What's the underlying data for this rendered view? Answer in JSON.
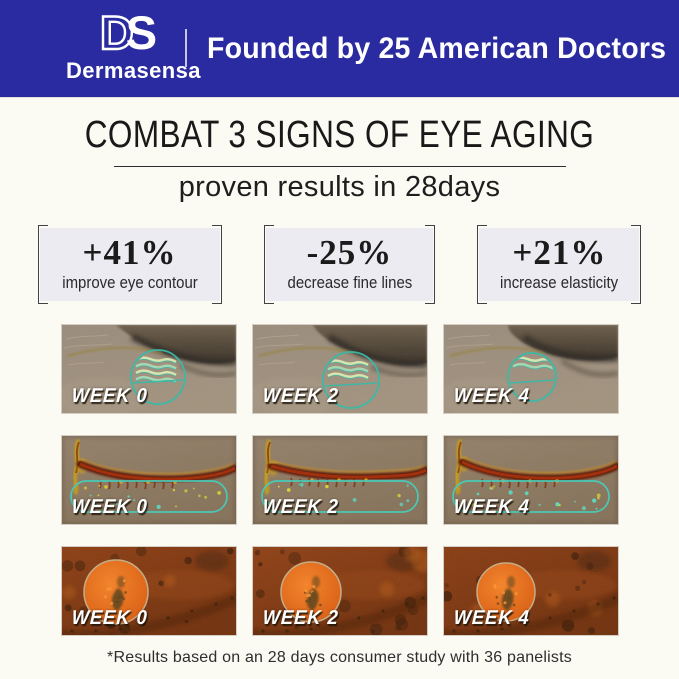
{
  "brand": {
    "logo_d": "D",
    "logo_s": "S",
    "logo_name": "Dermasensa",
    "tagline": "Founded by 25 American Doctors"
  },
  "headline": {
    "title": "COMBAT 3 SIGNS OF EYE AGING",
    "subtitle": "proven results in 28days"
  },
  "stats": [
    {
      "value": "+41%",
      "label": "improve eye contour"
    },
    {
      "value": "-25%",
      "label": "decrease fine lines"
    },
    {
      "value": "+21%",
      "label": "increase elasticity"
    }
  ],
  "results": {
    "rows": [
      {
        "metric": "eye-contour",
        "weeks": [
          "WEEK 0",
          "WEEK 2",
          "WEEK 4"
        ]
      },
      {
        "metric": "fine-lines",
        "weeks": [
          "WEEK 0",
          "WEEK 2",
          "WEEK 4"
        ]
      },
      {
        "metric": "elasticity",
        "weeks": [
          "WEEK 0",
          "WEEK 2",
          "WEEK 4"
        ]
      }
    ]
  },
  "footnote": "*Results based on an 28 days consumer study with 36 panelists",
  "colors": {
    "header_bg": "#2B2BA1",
    "annotation_teal": "#2FBCAB",
    "stat_box_bg": "#EBEBF1"
  }
}
